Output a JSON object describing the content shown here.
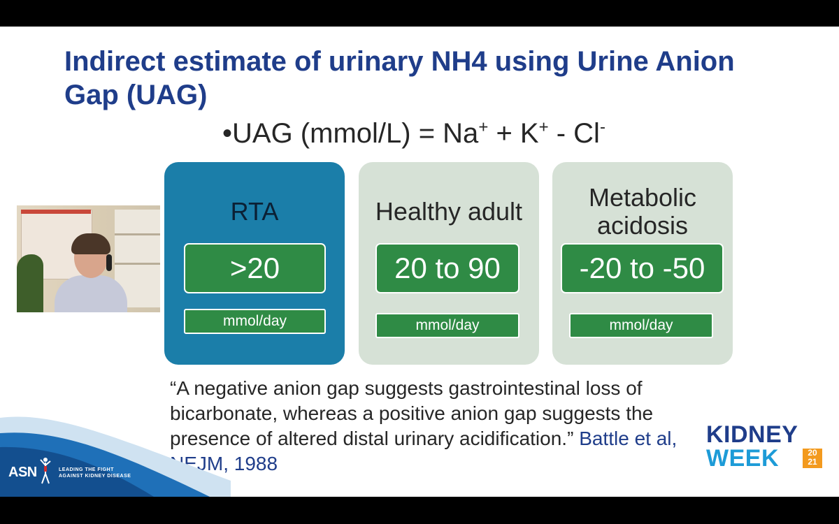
{
  "title": "Indirect estimate of urinary NH4 using Urine Anion Gap (UAG)",
  "formula": {
    "bullet": "•",
    "prefix": "UAG (mmol/L) = Na",
    "sup1": "+",
    "mid1": " + K",
    "sup2": "+",
    "mid2": " - Cl",
    "sup3": "-"
  },
  "cards": [
    {
      "title": "RTA",
      "value": ">20",
      "unit": "mmol/day"
    },
    {
      "title": "Healthy adult",
      "value": "20 to 90",
      "unit": "mmol/day"
    },
    {
      "title_line1": "Metabolic",
      "title_line2": "acidosis",
      "value": "-20 to -50",
      "unit": "mmol/day"
    }
  ],
  "quote": {
    "text": "“A negative anion gap suggests gastrointestinal loss of bicarbonate, whereas a positive anion gap suggests the presence of altered distal urinary acidification.”",
    "citation": "Battle et al, NEJM, 1988"
  },
  "branding": {
    "asn": "ASN",
    "tagline_line1": "LEADING THE FIGHT",
    "tagline_line2": "AGAINST KIDNEY DISEASE",
    "kidney": "KIDNEY",
    "week": "WEEK",
    "year_top": "20",
    "year_bottom": "21"
  },
  "colors": {
    "title": "#1f3d8a",
    "rta_card": "#1b7ea9",
    "gray_card": "#d6e1d6",
    "value_box": "#2f8b45",
    "kidney_week_blue": "#1d9bd7",
    "year_orange": "#f39a1e"
  }
}
